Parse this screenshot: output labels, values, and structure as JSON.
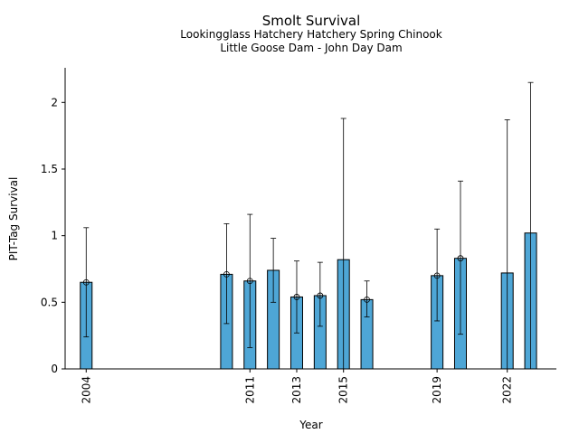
{
  "chart_data": {
    "type": "bar",
    "title": "Smolt Survival",
    "subtitles": [
      "Lookingglass Hatchery Hatchery Spring Chinook",
      "Little Goose Dam - John Day Dam"
    ],
    "xlabel": "Year",
    "ylabel": "PIT-Tag Survival",
    "xlim": [
      2003.1,
      2024.1
    ],
    "ylim": [
      0,
      2.26
    ],
    "yticks": [
      0,
      0.5,
      1,
      1.5,
      2
    ],
    "ytick_labels": [
      "0",
      "0.5",
      "1",
      "1.5",
      "2"
    ],
    "xticks": [
      2004,
      2011,
      2013,
      2015,
      2019,
      2022
    ],
    "xtick_labels": [
      "2004",
      "2011",
      "2013",
      "2015",
      "2019",
      "2022"
    ],
    "grid": false,
    "bar_color": "#4ea6d6",
    "bars": [
      {
        "year": 2004,
        "value": 0.65,
        "lower": 0.24,
        "upper": 1.06,
        "point": 0.65
      },
      {
        "year": 2010,
        "value": 0.71,
        "lower": 0.34,
        "upper": 1.09,
        "point": 0.71
      },
      {
        "year": 2011,
        "value": 0.66,
        "lower": 0.16,
        "upper": 1.16,
        "point": 0.66
      },
      {
        "year": 2012,
        "value": 0.74,
        "lower": 0.5,
        "upper": 0.98,
        "point": null
      },
      {
        "year": 2013,
        "value": 0.54,
        "lower": 0.27,
        "upper": 0.81,
        "point": 0.54
      },
      {
        "year": 2014,
        "value": 0.55,
        "lower": 0.32,
        "upper": 0.8,
        "point": 0.55
      },
      {
        "year": 2015,
        "value": 0.82,
        "lower": 0.0,
        "upper": 1.88,
        "point": null
      },
      {
        "year": 2016,
        "value": 0.52,
        "lower": 0.39,
        "upper": 0.66,
        "point": 0.52
      },
      {
        "year": 2019,
        "value": 0.7,
        "lower": 0.36,
        "upper": 1.05,
        "point": 0.7
      },
      {
        "year": 2020,
        "value": 0.83,
        "lower": 0.26,
        "upper": 1.41,
        "point": 0.83
      },
      {
        "year": 2022,
        "value": 0.72,
        "lower": 0.0,
        "upper": 1.87,
        "point": null
      },
      {
        "year": 2023,
        "value": 1.02,
        "lower": 0.0,
        "upper": 2.15,
        "point": null
      }
    ]
  }
}
